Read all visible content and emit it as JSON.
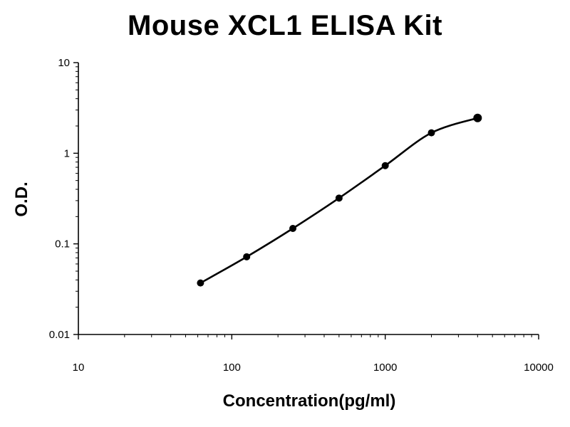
{
  "colors": {
    "axis": "#000000",
    "series": "#000000",
    "background": "#ffffff"
  },
  "chart_data": {
    "type": "line",
    "title": "Mouse XCL1 ELISA Kit",
    "xlabel": "Concentration(pg/ml)",
    "ylabel": "O.D.",
    "x_scale": "log",
    "y_scale": "log",
    "xlim": [
      10,
      10000
    ],
    "ylim": [
      0.01,
      10
    ],
    "x_ticks": [
      "10",
      "100",
      "1000",
      "10000"
    ],
    "y_ticks": [
      "0.01",
      "0.1",
      "1",
      "10"
    ],
    "grid": false,
    "legend": "none",
    "series": [
      {
        "points": [
          {
            "x": 62.5,
            "y": 0.037
          },
          {
            "x": 125,
            "y": 0.072
          },
          {
            "x": 250,
            "y": 0.148
          },
          {
            "x": 500,
            "y": 0.32
          },
          {
            "x": 1000,
            "y": 0.73
          },
          {
            "x": 2000,
            "y": 1.68
          },
          {
            "x": 4000,
            "y": 2.45
          }
        ]
      }
    ]
  }
}
